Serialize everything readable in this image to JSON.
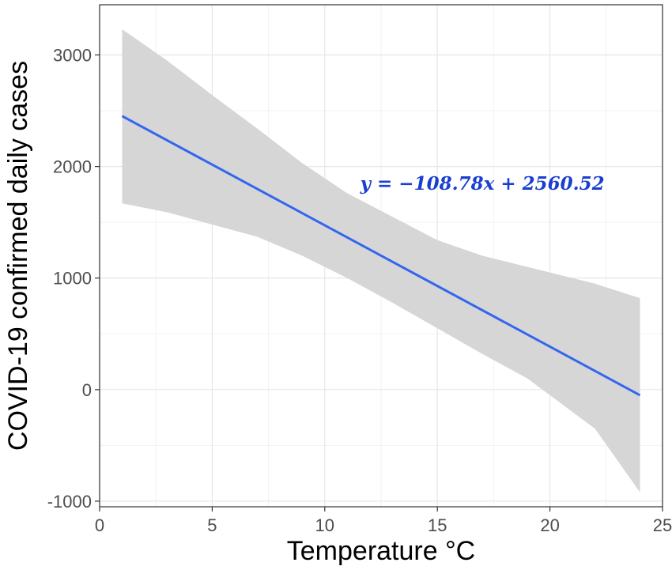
{
  "chart_data": {
    "type": "line",
    "xlabel": "Temperature °C",
    "ylabel": "COVID-19 confirmed daily cases",
    "xlim": [
      0,
      25
    ],
    "ylim": [
      -1050,
      3450
    ],
    "x_ticks": [
      0,
      5,
      10,
      15,
      20,
      25
    ],
    "y_ticks": [
      -1000,
      0,
      1000,
      2000,
      3000
    ],
    "grid": true,
    "legend": "none",
    "series": [
      {
        "x": [
          1,
          24
        ],
        "values": [
          2452,
          -50
        ]
      }
    ],
    "confidence_band": {
      "x": [
        1,
        3,
        5,
        7,
        9,
        11,
        13,
        15,
        17,
        19,
        21,
        22,
        24
      ],
      "upper": [
        3230,
        2950,
        2640,
        2340,
        2030,
        1760,
        1550,
        1340,
        1200,
        1100,
        1000,
        950,
        820
      ],
      "lower": [
        1670,
        1590,
        1480,
        1370,
        1200,
        1000,
        780,
        550,
        320,
        100,
        -200,
        -350,
        -920
      ]
    },
    "annotation": {
      "text": "y = −108.78x + 2560.52",
      "x": 17,
      "y": 1850
    },
    "colors": {
      "line": "#3366ee",
      "band": "#d6d6d6",
      "annotation": "#1a3fd0",
      "grid_major": "#e6e6e6",
      "grid_minor": "#f2f2f2",
      "frame": "#333333"
    }
  }
}
